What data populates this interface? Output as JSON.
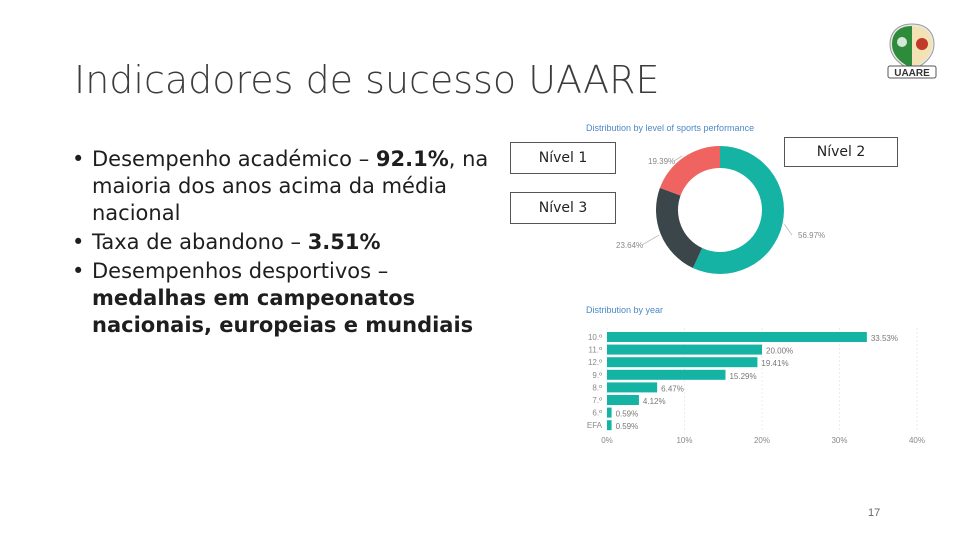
{
  "slide": {
    "title": "Indicadores de sucesso UAARE",
    "page_number": "17",
    "logo_text": "UAARE",
    "bullets": [
      {
        "pre": "Desempenho académico – ",
        "bold": "92.1%",
        "post": ", na maioria dos anos acima da média nacional"
      },
      {
        "pre": "Taxa de abandono – ",
        "bold": "3.51%",
        "post": ""
      },
      {
        "pre": "Desempenhos desportivos – ",
        "bold": "medalhas em campeonatos nacionais, europeias e mundiais",
        "post": ""
      }
    ],
    "callouts": {
      "nivel1": "Nível 1",
      "nivel2": "Nível 2",
      "nivel3": "Nível 3"
    }
  },
  "chart_data": [
    {
      "type": "pie",
      "title": "Distribution by level of sports performance",
      "categories": [
        "Nível 1",
        "Nível 2",
        "Nível 3"
      ],
      "values": [
        19.39,
        56.97,
        23.64
      ],
      "labels": [
        "19.39%",
        "56.97%",
        "23.64%"
      ],
      "colors": [
        "#ef6461",
        "#14b3a4",
        "#3a4649"
      ]
    },
    {
      "type": "bar",
      "title": "Distribution by year",
      "categories": [
        "10.º",
        "11.º",
        "12.º",
        "9.º",
        "8.º",
        "7.º",
        "6.º",
        "EFA"
      ],
      "values": [
        33.53,
        20.0,
        19.41,
        15.29,
        6.47,
        4.12,
        0.59,
        0.59
      ],
      "labels": [
        "33.53%",
        "20.00%",
        "19.41%",
        "15.29%",
        "6.47%",
        "4.12%",
        "0.59%",
        "0.59%"
      ],
      "xlim": [
        0,
        40
      ],
      "xticks": [
        "0%",
        "10%",
        "20%",
        "30%",
        "40%"
      ],
      "color": "#14b3a4"
    }
  ]
}
